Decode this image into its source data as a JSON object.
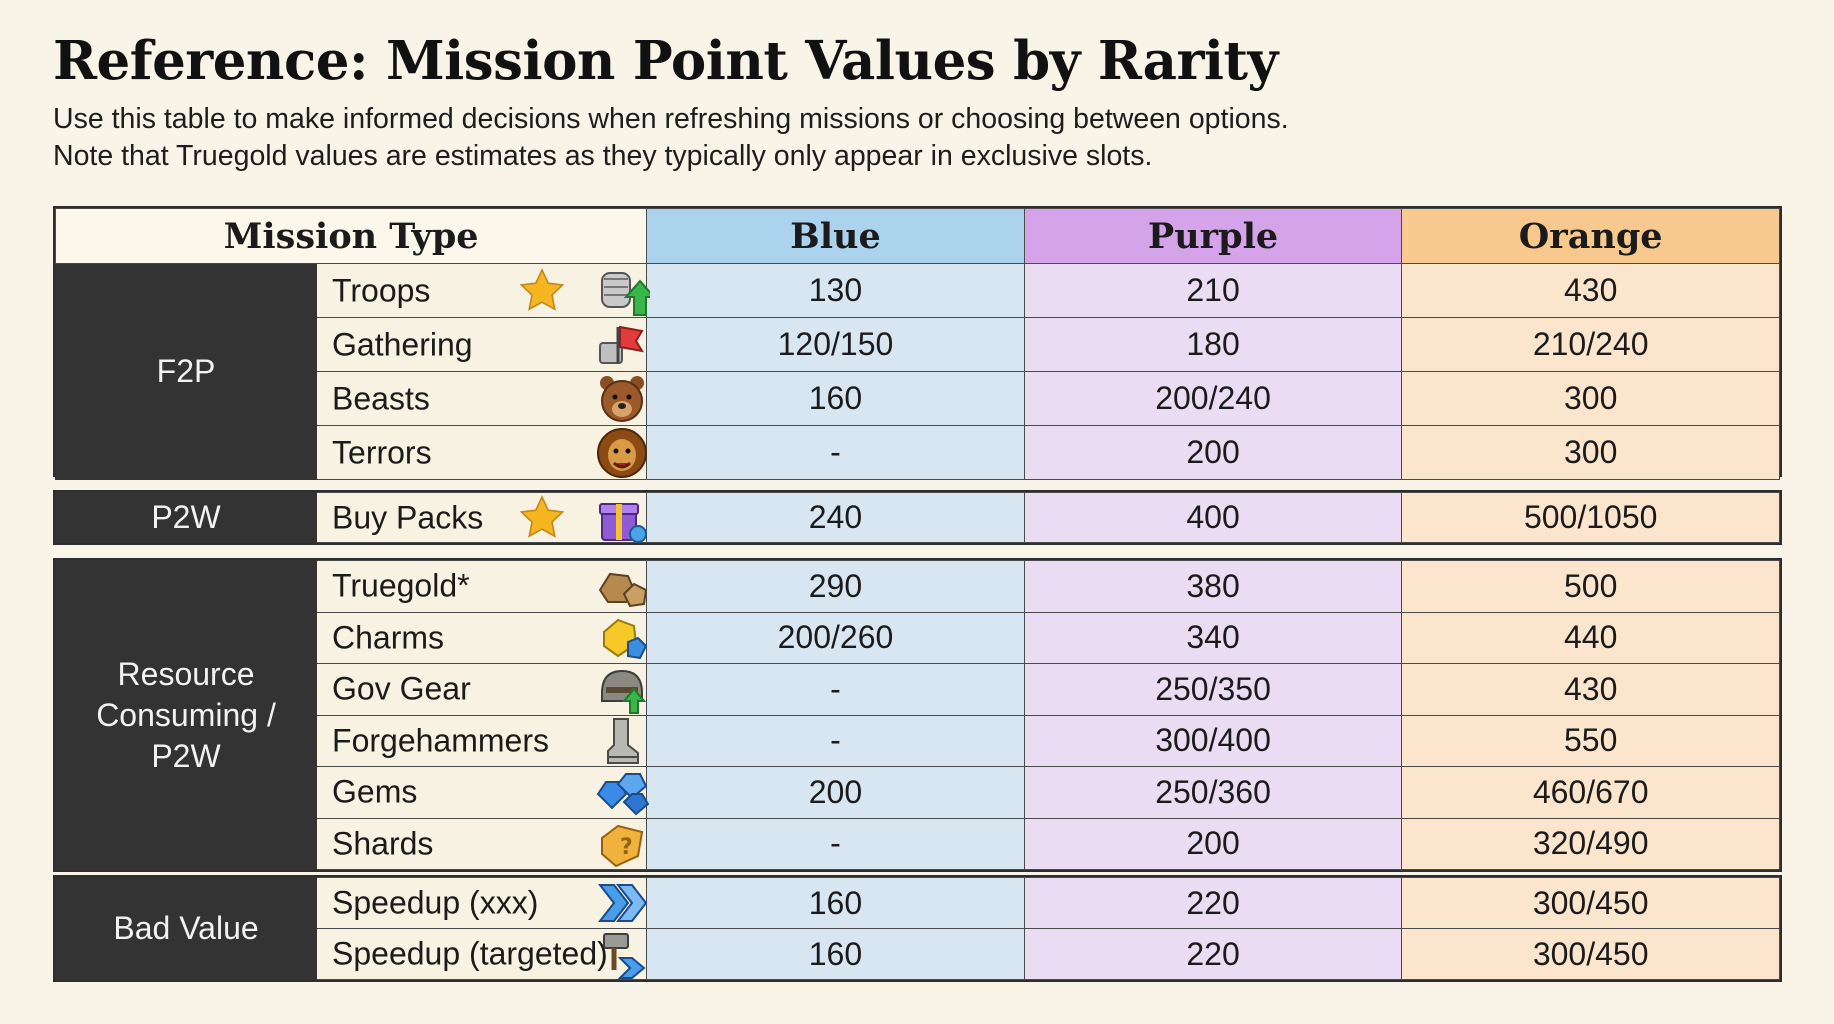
{
  "header": {
    "title": "Reference: Mission Point Values by Rarity",
    "subtitle_line1": "Use this table to make informed decisions when refreshing missions or choosing between options.",
    "subtitle_line2": "Note that Truegold values are estimates as they typically only appear in exclusive slots."
  },
  "columns": {
    "mission_type": "Mission Type",
    "blue": "Blue",
    "purple": "Purple",
    "orange": "Orange"
  },
  "colors": {
    "blue_header": "#acd3ee",
    "purple_header": "#d4a3ea",
    "orange_header": "#f8c98f",
    "group_bg": "#333333",
    "star": "#f5b622"
  },
  "groups": {
    "f2p": {
      "label": "F2P",
      "rows": [
        {
          "type": "Troops",
          "icon": "troops-fist-arrow-icon",
          "starred": true,
          "blue": "130",
          "purple": "210",
          "orange": "430"
        },
        {
          "type": "Gathering",
          "icon": "gathering-flag-icon",
          "starred": false,
          "blue": "120/150",
          "purple": "180",
          "orange": "210/240"
        },
        {
          "type": "Beasts",
          "icon": "bear-icon",
          "starred": false,
          "blue": "160",
          "purple": "200/240",
          "orange": "300"
        },
        {
          "type": "Terrors",
          "icon": "lion-icon",
          "starred": false,
          "blue": "-",
          "purple": "200",
          "orange": "300"
        }
      ]
    },
    "p2w": {
      "label": "P2W",
      "rows": [
        {
          "type": "Buy Packs",
          "icon": "gift-box-icon",
          "starred": true,
          "blue": "240",
          "purple": "400",
          "orange": "500/1050"
        }
      ]
    },
    "resource": {
      "label_line1": "Resource",
      "label_line2": "Consuming /",
      "label_line3": "P2W",
      "rows": [
        {
          "type": "Truegold*",
          "icon": "truegold-ore-icon",
          "starred": false,
          "blue": "290",
          "purple": "380",
          "orange": "500"
        },
        {
          "type": "Charms",
          "icon": "charm-gem-icon",
          "starred": false,
          "blue": "200/260",
          "purple": "340",
          "orange": "440"
        },
        {
          "type": "Gov Gear",
          "icon": "helmet-upgrade-icon",
          "starred": false,
          "blue": "-",
          "purple": "250/350",
          "orange": "430"
        },
        {
          "type": "Forgehammers",
          "icon": "forgehammer-boot-icon",
          "starred": false,
          "blue": "-",
          "purple": "300/400",
          "orange": "550"
        },
        {
          "type": "Gems",
          "icon": "gems-icon",
          "starred": false,
          "blue": "200",
          "purple": "250/360",
          "orange": "460/670"
        },
        {
          "type": "Shards",
          "icon": "shard-puzzle-icon",
          "starred": false,
          "blue": "-",
          "purple": "200",
          "orange": "320/490"
        }
      ]
    },
    "bad": {
      "label": "Bad Value",
      "rows": [
        {
          "type": "Speedup (xxx)",
          "icon": "speedup-chevrons-icon",
          "starred": false,
          "blue": "160",
          "purple": "220",
          "orange": "300/450"
        },
        {
          "type": "Speedup (targeted)",
          "icon": "speedup-hammer-icon",
          "starred": false,
          "blue": "160",
          "purple": "220",
          "orange": "300/450"
        }
      ]
    }
  }
}
